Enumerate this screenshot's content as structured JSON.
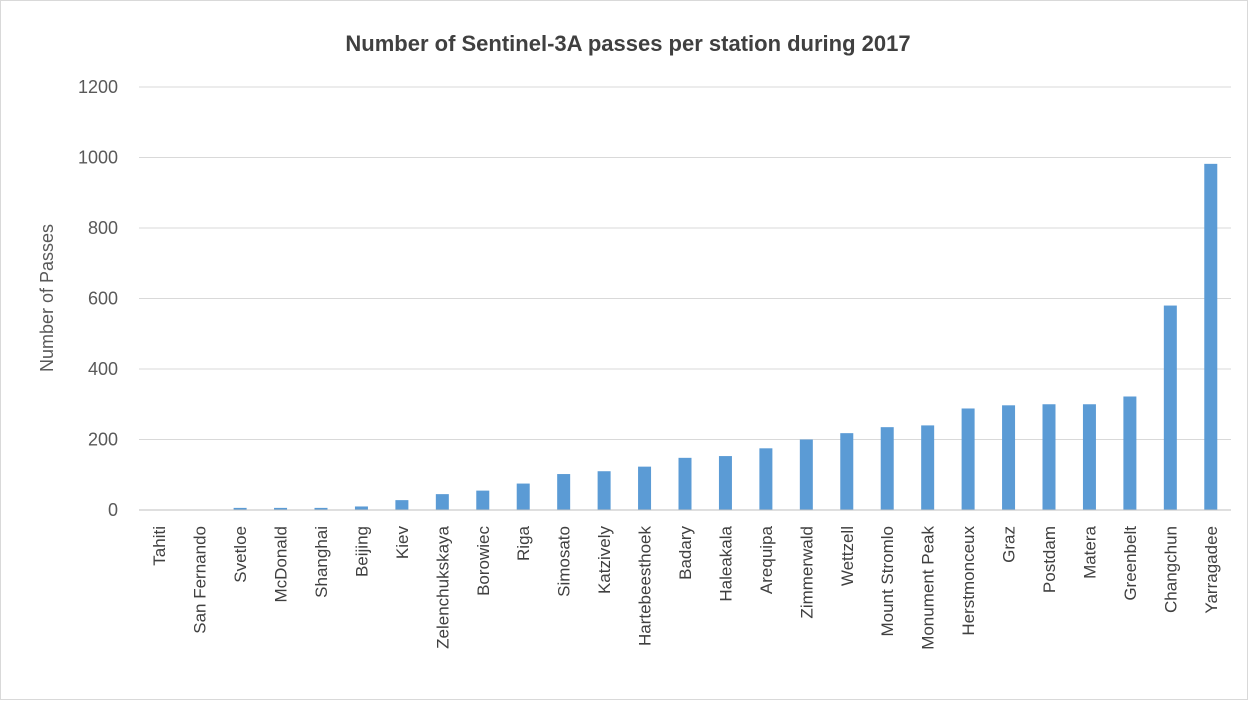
{
  "chart_data": {
    "type": "bar",
    "title": "Number of Sentinel-3A passes per station during 2017",
    "xlabel": "",
    "ylabel": "Number of Passes",
    "ylim": [
      0,
      1200
    ],
    "yticks": [
      0,
      200,
      400,
      600,
      800,
      1000,
      1200
    ],
    "grid": true,
    "legend": "none",
    "bar_color": "#5b9bd5",
    "categories": [
      "Tahiti",
      "San Fernando",
      "Svetloe",
      "McDonald",
      "Shanghai",
      "Beijing",
      "Kiev",
      "Zelenchukskaya",
      "Borowiec",
      "Riga",
      "Simosato",
      "Katzively",
      "Hartebeesthoek",
      "Badary",
      "Haleakala",
      "Arequipa",
      "Zimmerwald",
      "Wettzell",
      "Mount Stromlo",
      "Monument Peak",
      "Herstmonceux",
      "Graz",
      "Postdam",
      "Matera",
      "Greenbelt",
      "Changchun",
      "Yarragadee"
    ],
    "values": [
      0,
      0,
      6,
      6,
      6,
      10,
      28,
      45,
      55,
      75,
      102,
      110,
      123,
      148,
      153,
      175,
      200,
      218,
      235,
      240,
      288,
      297,
      300,
      300,
      322,
      580,
      982
    ]
  }
}
